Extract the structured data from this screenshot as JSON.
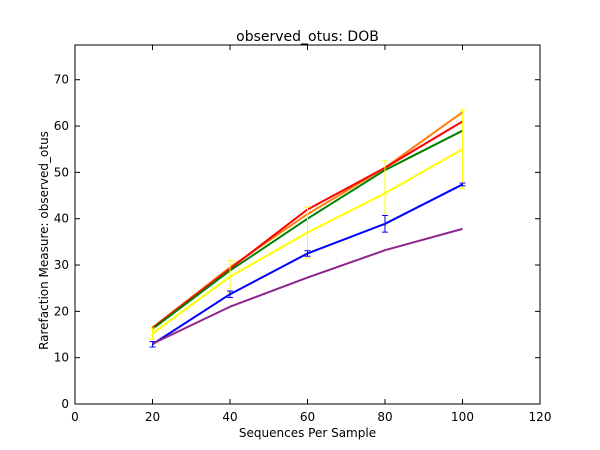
{
  "chart_data": {
    "type": "line",
    "title": "observed_otus: DOB",
    "xlabel": "Sequences Per Sample",
    "ylabel": "Rarefaction Measure: observed_otus",
    "xlim": [
      0,
      120
    ],
    "ylim": [
      0,
      77.5
    ],
    "xticks": [
      0,
      20,
      40,
      60,
      80,
      100,
      120
    ],
    "yticks": [
      0,
      10,
      20,
      30,
      40,
      50,
      60,
      70
    ],
    "grid": false,
    "legend": "none",
    "x": [
      20,
      40,
      60,
      80,
      100
    ],
    "series": [
      {
        "color": "#ff7f0e",
        "values": [
          16.5,
          29.5,
          41,
          51,
          63
        ],
        "err": [
          0,
          0,
          0,
          0,
          0
        ]
      },
      {
        "color": "#ff0000",
        "values": [
          16.4,
          29.2,
          42,
          51,
          61
        ],
        "err": [
          0,
          0,
          0,
          0,
          0
        ]
      },
      {
        "color": "#008000",
        "values": [
          16.2,
          28.8,
          40,
          50.5,
          59
        ],
        "err": [
          0,
          0,
          0,
          0,
          0
        ]
      },
      {
        "color": "#ffff00",
        "values": [
          15.2,
          27.5,
          37,
          45.5,
          55
        ],
        "err": [
          1.2,
          3.5,
          5.5,
          7,
          8.5
        ]
      },
      {
        "color": "#0000ff",
        "values": [
          12.9,
          23.7,
          32.5,
          38.9,
          47.4
        ],
        "err": [
          0.6,
          0.7,
          0.6,
          1.8,
          0.3
        ]
      },
      {
        "color": "#8e248e",
        "values": [
          13,
          21,
          27.3,
          33.2,
          37.8
        ],
        "err": [
          0,
          0,
          0,
          0,
          0
        ]
      }
    ]
  }
}
